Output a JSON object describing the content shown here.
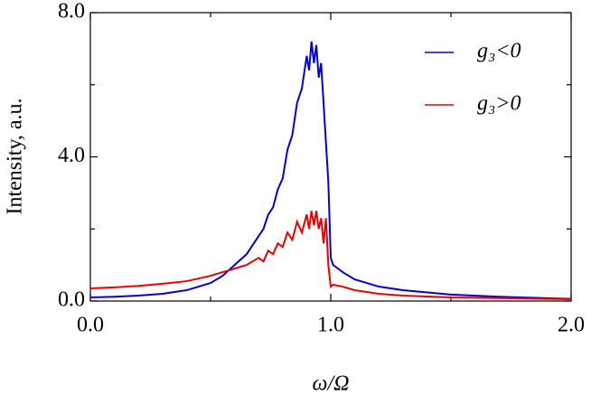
{
  "chart_data": {
    "type": "line",
    "xlabel": "ω/Ω",
    "ylabel": "Intensity, a.u.",
    "x": [
      0,
      0.1,
      0.2,
      0.3,
      0.4,
      0.5,
      0.55,
      0.6,
      0.65,
      0.7,
      0.72,
      0.74,
      0.76,
      0.78,
      0.8,
      0.82,
      0.84,
      0.86,
      0.88,
      0.9,
      0.91,
      0.92,
      0.93,
      0.94,
      0.95,
      0.96,
      0.97,
      0.98,
      0.99,
      1.0,
      1.01,
      1.05,
      1.1,
      1.2,
      1.3,
      1.5,
      1.7,
      2.0
    ],
    "series": [
      {
        "name": "g₃<0",
        "color": "#0000dd",
        "values": [
          0.1,
          0.12,
          0.15,
          0.2,
          0.3,
          0.5,
          0.7,
          1.0,
          1.3,
          1.8,
          2.0,
          2.4,
          2.6,
          3.1,
          3.4,
          4.2,
          4.6,
          5.5,
          5.9,
          6.8,
          6.4,
          7.2,
          6.6,
          7.1,
          6.2,
          6.6,
          5.5,
          4.4,
          3.3,
          1.2,
          1.0,
          0.8,
          0.6,
          0.4,
          0.3,
          0.18,
          0.12,
          0.06
        ]
      },
      {
        "name": "g₃>0",
        "color": "#ee0000",
        "values": [
          0.35,
          0.38,
          0.42,
          0.48,
          0.55,
          0.7,
          0.8,
          0.9,
          1.0,
          1.2,
          1.1,
          1.4,
          1.3,
          1.6,
          1.5,
          1.9,
          1.7,
          2.2,
          1.9,
          2.4,
          2.0,
          2.5,
          2.1,
          2.5,
          2.0,
          2.3,
          1.6,
          2.3,
          1.0,
          0.4,
          0.45,
          0.4,
          0.3,
          0.2,
          0.15,
          0.1,
          0.08,
          0.05
        ]
      }
    ],
    "xlim": [
      0,
      2
    ],
    "ylim": [
      0,
      8
    ],
    "xticks": [
      {
        "value": 0,
        "label": "0.0"
      },
      {
        "value": 1,
        "label": "1.0"
      },
      {
        "value": 2,
        "label": "2.0"
      }
    ],
    "yticks": [
      {
        "value": 0,
        "label": "0.0"
      },
      {
        "value": 4,
        "label": "4.0"
      },
      {
        "value": 8,
        "label": "8.0"
      }
    ],
    "xminorticks": [
      0.5,
      1.5
    ],
    "yminorticks": [
      2,
      6
    ],
    "legend": "upper right"
  }
}
